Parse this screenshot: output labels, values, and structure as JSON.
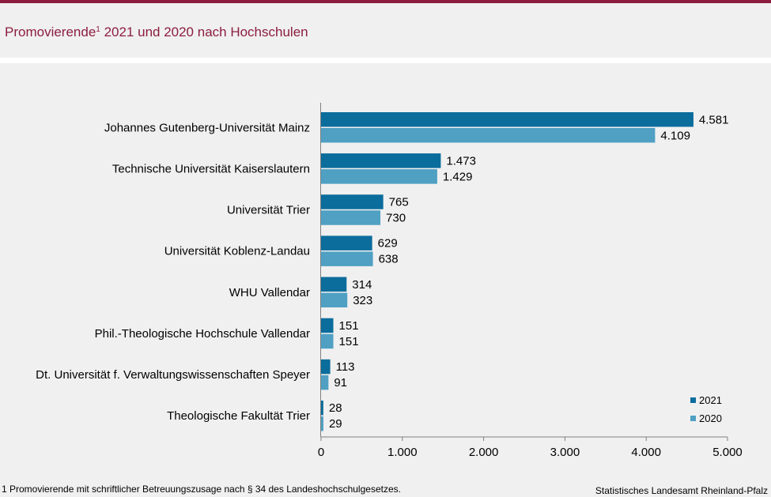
{
  "header": {
    "title": "Promovierende",
    "title_sup": "1",
    "title_rest": " 2021 und 2020 nach Hochschulen"
  },
  "colors": {
    "brand": "#8c1d3f",
    "series_2021": "#0b6d9c",
    "series_2020": "#4fa0c3"
  },
  "chart_data": {
    "type": "bar",
    "orientation": "horizontal",
    "categories": [
      "Johannes Gutenberg-Universität Mainz",
      "Technische Universität Kaiserslautern",
      "Universität Trier",
      "Universität Koblenz-Landau",
      "WHU Vallendar",
      "Phil.-Theologische Hochschule Vallendar",
      "Dt. Universität f. Verwaltungswissenschaften Speyer",
      "Theologische Fakultät Trier"
    ],
    "series": [
      {
        "name": "2021",
        "values": [
          4581,
          1473,
          765,
          629,
          314,
          151,
          113,
          28
        ],
        "labels": [
          "4.581",
          "1.473",
          "765",
          "629",
          "314",
          "151",
          "113",
          "28"
        ]
      },
      {
        "name": "2020",
        "values": [
          4109,
          1429,
          730,
          638,
          323,
          151,
          91,
          29
        ],
        "labels": [
          "4.109",
          "1.429",
          "730",
          "638",
          "323",
          "151",
          "91",
          "29"
        ]
      }
    ],
    "xlim": [
      0,
      5000
    ],
    "xticks": [
      0,
      1000,
      2000,
      3000,
      4000,
      5000
    ],
    "xtick_labels": [
      "0",
      "1.000",
      "2.000",
      "3.000",
      "4.000",
      "5.000"
    ],
    "legend_position": "bottom-right",
    "grid": false
  },
  "footer": {
    "footnote": "1 Promovierende  mit schriftlicher Betreuungszusage  nach § 34 des Landeshochschulgesetzes.",
    "source": "Statistisches Landesamt Rheinland-Pfalz"
  }
}
